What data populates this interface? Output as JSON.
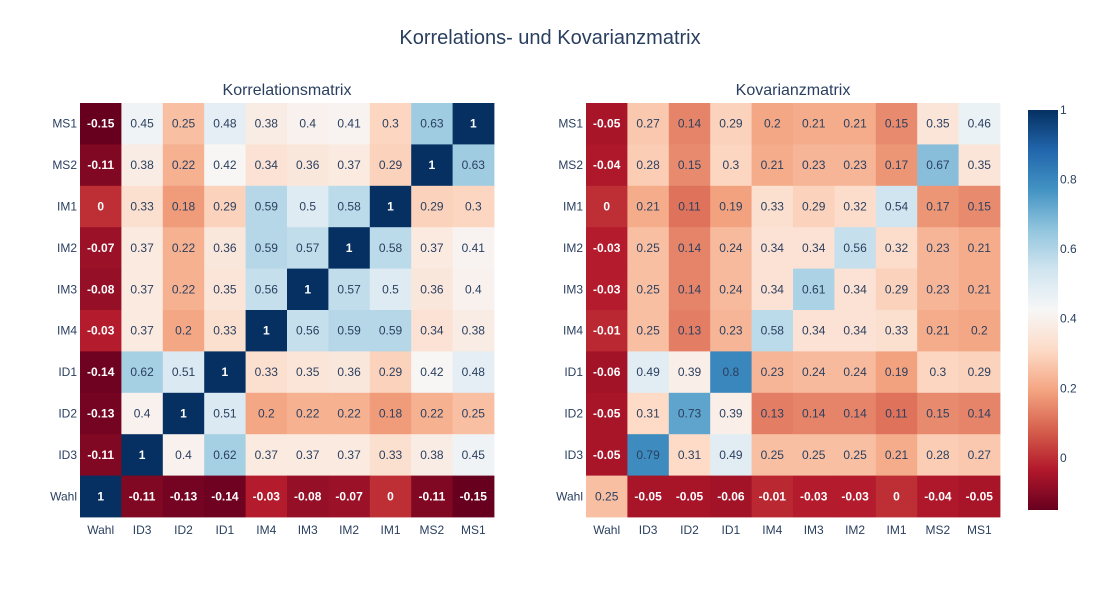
{
  "figure": {
    "title": "Korrelations- und Kovarianzmatrix"
  },
  "colorscale": {
    "stops": [
      "#67001f",
      "#b2182b",
      "#d6604d",
      "#f4a582",
      "#fddbc7",
      "#f7f7f7",
      "#d1e5f0",
      "#92c5de",
      "#4393c3",
      "#2166ac",
      "#053061"
    ],
    "ticks": [
      "0",
      "0.2",
      "0.4",
      "0.6",
      "0.8",
      "1"
    ]
  },
  "chart_data": [
    {
      "type": "heatmap",
      "title": "Korrelationsmatrix",
      "x_categories": [
        "Wahl",
        "ID3",
        "ID2",
        "ID1",
        "IM4",
        "IM3",
        "IM2",
        "IM1",
        "MS2",
        "MS1"
      ],
      "y_categories_top_to_bottom": [
        "MS1",
        "MS2",
        "IM1",
        "IM2",
        "IM3",
        "IM4",
        "ID1",
        "ID2",
        "ID3",
        "Wahl"
      ],
      "zmin": -0.15,
      "zmax": 1,
      "values": [
        [
          -0.15,
          0.45,
          0.25,
          0.48,
          0.38,
          0.4,
          0.41,
          0.3,
          0.63,
          1
        ],
        [
          -0.11,
          0.38,
          0.22,
          0.42,
          0.34,
          0.36,
          0.37,
          0.29,
          1,
          0.63
        ],
        [
          0,
          0.33,
          0.18,
          0.29,
          0.59,
          0.5,
          0.58,
          1,
          0.29,
          0.3
        ],
        [
          -0.07,
          0.37,
          0.22,
          0.36,
          0.59,
          0.57,
          1,
          0.58,
          0.37,
          0.41
        ],
        [
          -0.08,
          0.37,
          0.22,
          0.35,
          0.56,
          1,
          0.57,
          0.5,
          0.36,
          0.4
        ],
        [
          -0.03,
          0.37,
          0.2,
          0.33,
          1,
          0.56,
          0.59,
          0.59,
          0.34,
          0.38
        ],
        [
          -0.14,
          0.62,
          0.51,
          1,
          0.33,
          0.35,
          0.36,
          0.29,
          0.42,
          0.48
        ],
        [
          -0.13,
          0.4,
          1,
          0.51,
          0.2,
          0.22,
          0.22,
          0.18,
          0.22,
          0.25
        ],
        [
          -0.11,
          1,
          0.4,
          0.62,
          0.37,
          0.37,
          0.37,
          0.33,
          0.38,
          0.45
        ],
        [
          1,
          -0.11,
          -0.13,
          -0.14,
          -0.03,
          -0.08,
          -0.07,
          0,
          -0.11,
          -0.15
        ]
      ]
    },
    {
      "type": "heatmap",
      "title": "Kovarianzmatrix",
      "x_categories": [
        "Wahl",
        "ID3",
        "ID2",
        "ID1",
        "IM4",
        "IM3",
        "IM2",
        "IM1",
        "MS2",
        "MS1"
      ],
      "y_categories_top_to_bottom": [
        "MS1",
        "MS2",
        "IM1",
        "IM2",
        "IM3",
        "IM4",
        "ID1",
        "ID2",
        "ID3",
        "Wahl"
      ],
      "zmin": -0.15,
      "zmax": 1,
      "values": [
        [
          -0.05,
          0.27,
          0.14,
          0.29,
          0.2,
          0.21,
          0.21,
          0.15,
          0.35,
          0.46
        ],
        [
          -0.04,
          0.28,
          0.15,
          0.3,
          0.21,
          0.23,
          0.23,
          0.17,
          0.67,
          0.35
        ],
        [
          0,
          0.21,
          0.11,
          0.19,
          0.33,
          0.29,
          0.32,
          0.54,
          0.17,
          0.15
        ],
        [
          -0.03,
          0.25,
          0.14,
          0.24,
          0.34,
          0.34,
          0.56,
          0.32,
          0.23,
          0.21
        ],
        [
          -0.03,
          0.25,
          0.14,
          0.24,
          0.34,
          0.61,
          0.34,
          0.29,
          0.23,
          0.21
        ],
        [
          -0.01,
          0.25,
          0.13,
          0.23,
          0.58,
          0.34,
          0.34,
          0.33,
          0.21,
          0.2
        ],
        [
          -0.06,
          0.49,
          0.39,
          0.8,
          0.23,
          0.24,
          0.24,
          0.19,
          0.3,
          0.29
        ],
        [
          -0.05,
          0.31,
          0.73,
          0.39,
          0.13,
          0.14,
          0.14,
          0.11,
          0.15,
          0.14
        ],
        [
          -0.05,
          0.79,
          0.31,
          0.49,
          0.25,
          0.25,
          0.25,
          0.21,
          0.28,
          0.27
        ],
        [
          0.25,
          -0.05,
          -0.05,
          -0.06,
          -0.01,
          -0.03,
          -0.03,
          0,
          -0.04,
          -0.05
        ]
      ]
    }
  ]
}
